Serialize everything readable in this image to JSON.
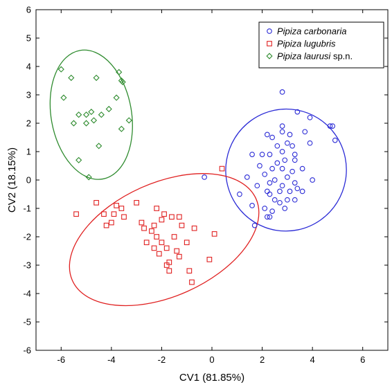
{
  "chart_data": {
    "type": "scatter",
    "xlabel": "CV1 (81.85%)",
    "ylabel": "CV2 (18.15%)",
    "xlim": [
      -7,
      7
    ],
    "ylim": [
      -6,
      6
    ],
    "xticks": [
      -6,
      -4,
      -2,
      0,
      2,
      4,
      6
    ],
    "yticks": [
      -6,
      -5,
      -4,
      -3,
      -2,
      -1,
      0,
      1,
      2,
      3,
      4,
      5,
      6
    ],
    "grid": false,
    "legend_position": "top-right",
    "series": [
      {
        "name": "Pipiza carbonaria",
        "name_suffix": "",
        "marker": "circle",
        "color": "#2b2bd6",
        "points": [
          [
            2.8,
            3.1
          ],
          [
            3.4,
            2.4
          ],
          [
            3.9,
            2.2
          ],
          [
            4.7,
            1.9
          ],
          [
            4.8,
            1.9
          ],
          [
            4.9,
            1.4
          ],
          [
            2.2,
            1.6
          ],
          [
            2.8,
            1.9
          ],
          [
            2.8,
            1.7
          ],
          [
            3.1,
            1.6
          ],
          [
            3.7,
            1.7
          ],
          [
            2.4,
            1.5
          ],
          [
            3.0,
            1.3
          ],
          [
            2.6,
            1.2
          ],
          [
            3.2,
            1.2
          ],
          [
            3.9,
            1.3
          ],
          [
            2.0,
            0.9
          ],
          [
            2.3,
            0.9
          ],
          [
            2.8,
            1.0
          ],
          [
            3.3,
            0.9
          ],
          [
            1.6,
            0.9
          ],
          [
            2.9,
            0.7
          ],
          [
            3.3,
            0.7
          ],
          [
            2.6,
            0.6
          ],
          [
            1.9,
            0.5
          ],
          [
            2.4,
            0.4
          ],
          [
            2.8,
            0.4
          ],
          [
            3.2,
            0.3
          ],
          [
            3.6,
            0.4
          ],
          [
            2.1,
            0.2
          ],
          [
            3.0,
            0.1
          ],
          [
            1.4,
            0.1
          ],
          [
            -0.3,
            0.1
          ],
          [
            2.5,
            0.0
          ],
          [
            4.0,
            0.0
          ],
          [
            3.3,
            -0.1
          ],
          [
            1.8,
            -0.2
          ],
          [
            2.3,
            -0.1
          ],
          [
            2.8,
            -0.2
          ],
          [
            3.4,
            -0.3
          ],
          [
            2.2,
            -0.4
          ],
          [
            2.7,
            -0.4
          ],
          [
            3.1,
            -0.4
          ],
          [
            3.6,
            -0.4
          ],
          [
            1.1,
            -0.5
          ],
          [
            2.3,
            -0.5
          ],
          [
            2.5,
            -0.7
          ],
          [
            3.0,
            -0.7
          ],
          [
            3.3,
            -0.7
          ],
          [
            2.7,
            -0.8
          ],
          [
            1.6,
            -0.9
          ],
          [
            2.1,
            -1.0
          ],
          [
            2.4,
            -1.1
          ],
          [
            2.9,
            -1.0
          ],
          [
            2.2,
            -1.3
          ],
          [
            2.3,
            -1.3
          ],
          [
            1.7,
            -1.6
          ]
        ]
      },
      {
        "name": "Pipiza lugubris",
        "name_suffix": "",
        "marker": "square",
        "color": "#e02020",
        "points": [
          [
            0.4,
            0.4
          ],
          [
            -5.4,
            -1.2
          ],
          [
            -4.6,
            -0.8
          ],
          [
            -4.3,
            -1.2
          ],
          [
            -4.2,
            -1.6
          ],
          [
            -4.0,
            -1.5
          ],
          [
            -3.9,
            -1.2
          ],
          [
            -3.8,
            -0.9
          ],
          [
            -3.6,
            -1.0
          ],
          [
            -3.5,
            -1.3
          ],
          [
            -3.0,
            -0.8
          ],
          [
            -2.8,
            -1.5
          ],
          [
            -2.7,
            -1.7
          ],
          [
            -2.6,
            -2.2
          ],
          [
            -2.4,
            -1.8
          ],
          [
            -2.3,
            -1.6
          ],
          [
            -2.2,
            -1.0
          ],
          [
            -2.2,
            -2.0
          ],
          [
            -2.1,
            -2.6
          ],
          [
            -2.0,
            -1.4
          ],
          [
            -2.0,
            -2.2
          ],
          [
            -1.9,
            -1.2
          ],
          [
            -1.8,
            -2.4
          ],
          [
            -1.8,
            -3.0
          ],
          [
            -1.7,
            -3.2
          ],
          [
            -1.6,
            -1.3
          ],
          [
            -1.5,
            -2.0
          ],
          [
            -1.4,
            -2.5
          ],
          [
            -1.3,
            -2.7
          ],
          [
            -1.2,
            -1.6
          ],
          [
            -1.0,
            -2.2
          ],
          [
            -0.9,
            -3.2
          ],
          [
            -0.8,
            -3.6
          ],
          [
            -0.7,
            -1.7
          ],
          [
            0.1,
            -1.9
          ],
          [
            -0.1,
            -2.8
          ],
          [
            -1.3,
            -1.3
          ],
          [
            -2.3,
            -2.4
          ],
          [
            -1.7,
            -2.9
          ]
        ]
      },
      {
        "name": "Pipiza laurusi",
        "name_suffix": "sp.n.",
        "marker": "diamond",
        "color": "#2e8b2e",
        "points": [
          [
            -6.0,
            3.9
          ],
          [
            -5.6,
            3.6
          ],
          [
            -5.9,
            2.9
          ],
          [
            -4.6,
            3.6
          ],
          [
            -3.7,
            3.8
          ],
          [
            -3.6,
            3.5
          ],
          [
            -3.55,
            3.45
          ],
          [
            -3.8,
            2.9
          ],
          [
            -5.3,
            2.3
          ],
          [
            -5.0,
            2.3
          ],
          [
            -4.8,
            2.4
          ],
          [
            -4.4,
            2.3
          ],
          [
            -4.1,
            2.5
          ],
          [
            -5.5,
            2.0
          ],
          [
            -5.0,
            2.0
          ],
          [
            -4.7,
            2.1
          ],
          [
            -3.3,
            2.1
          ],
          [
            -3.6,
            1.8
          ],
          [
            -4.5,
            1.2
          ],
          [
            -5.3,
            0.7
          ],
          [
            -4.9,
            0.1
          ]
        ]
      }
    ],
    "ellipses": [
      {
        "series": "Pipiza carbonaria",
        "cx": 2.95,
        "cy": 0.35,
        "rx": 2.4,
        "ry": 2.15,
        "rot_deg": 10
      },
      {
        "series": "Pipiza lugubris",
        "cx": -1.9,
        "cy": -2.1,
        "rx": 4.0,
        "ry": 2.0,
        "rot_deg": -24
      },
      {
        "series": "Pipiza laurusi",
        "cx": -4.8,
        "cy": 2.3,
        "rx": 1.6,
        "ry": 2.3,
        "rot_deg": -10
      }
    ]
  }
}
